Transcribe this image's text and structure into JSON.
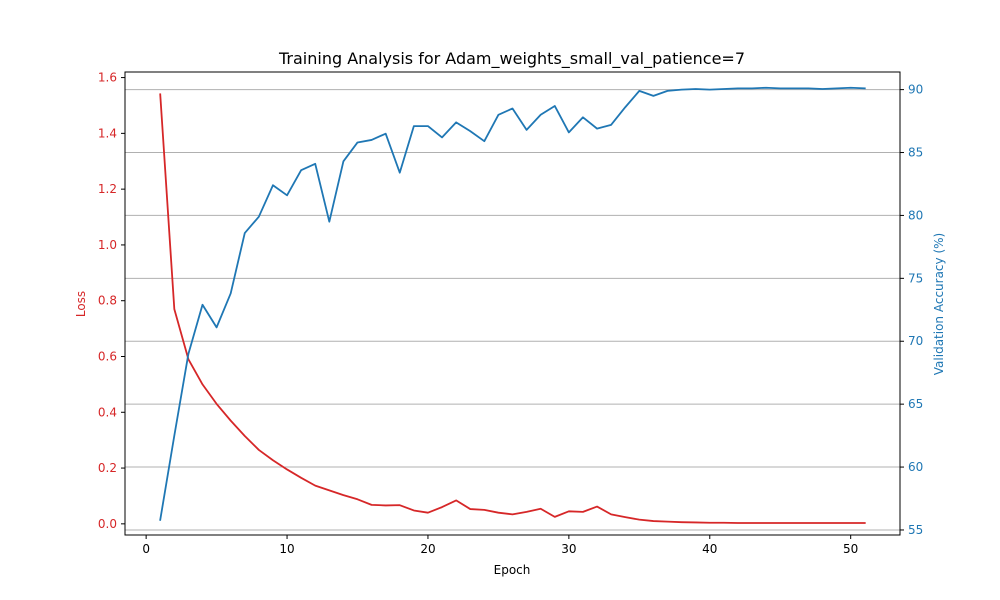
{
  "chart_data": {
    "type": "line",
    "title": "Training Analysis for Adam_weights_small_val_patience=7",
    "xlabel": "Epoch",
    "ylabel_left": "Loss",
    "ylabel_right": "Validation Accuracy (%)",
    "xlim": [
      -1.5,
      53.5
    ],
    "ylim_left": [
      -0.04,
      1.62
    ],
    "ylim_right": [
      54.6,
      91.4
    ],
    "xticks": [
      0,
      10,
      20,
      30,
      40,
      50
    ],
    "yticks_left": [
      0.0,
      0.2,
      0.4,
      0.6,
      0.8,
      1.0,
      1.2,
      1.4,
      1.6
    ],
    "yticks_left_labels": [
      "0.0",
      "0.2",
      "0.4",
      "0.6",
      "0.8",
      "1.0",
      "1.2",
      "1.4",
      "1.6"
    ],
    "yticks_right": [
      55,
      60,
      65,
      70,
      75,
      80,
      85,
      90
    ],
    "grid": "right-axis horizontal",
    "colors": {
      "loss": "#d62728",
      "accuracy": "#1f77b4",
      "grid": "#b0b0b0"
    },
    "x": [
      1,
      2,
      3,
      4,
      5,
      6,
      7,
      8,
      9,
      10,
      11,
      12,
      13,
      14,
      15,
      16,
      17,
      18,
      19,
      20,
      21,
      22,
      23,
      24,
      25,
      26,
      27,
      28,
      29,
      30,
      31,
      32,
      33,
      34,
      35,
      36,
      37,
      38,
      39,
      40,
      41,
      42,
      43,
      44,
      45,
      46,
      47,
      48,
      49,
      50,
      51
    ],
    "series": [
      {
        "axis": "left",
        "values": [
          1.54,
          0.77,
          0.59,
          0.5,
          0.43,
          0.37,
          0.315,
          0.265,
          0.228,
          0.195,
          0.165,
          0.137,
          0.12,
          0.103,
          0.088,
          0.068,
          0.066,
          0.067,
          0.048,
          0.04,
          0.06,
          0.084,
          0.053,
          0.05,
          0.04,
          0.034,
          0.043,
          0.054,
          0.025,
          0.045,
          0.043,
          0.062,
          0.034,
          0.024,
          0.015,
          0.01,
          0.008,
          0.006,
          0.005,
          0.004,
          0.004,
          0.003,
          0.003,
          0.003,
          0.003,
          0.003,
          0.003,
          0.003,
          0.003,
          0.003,
          0.003
        ]
      },
      {
        "axis": "right",
        "values": [
          55.8,
          62.5,
          69.0,
          72.9,
          71.1,
          73.8,
          78.6,
          79.9,
          82.4,
          81.6,
          83.6,
          84.1,
          79.5,
          84.3,
          85.8,
          86.0,
          86.5,
          83.4,
          87.1,
          87.1,
          86.2,
          87.4,
          86.7,
          85.9,
          88.0,
          88.5,
          86.8,
          88.0,
          88.7,
          86.6,
          87.8,
          86.9,
          87.2,
          88.6,
          89.9,
          89.5,
          89.9,
          90.0,
          90.05,
          90.0,
          90.05,
          90.1,
          90.1,
          90.15,
          90.1,
          90.1,
          90.1,
          90.05,
          90.1,
          90.15,
          90.1
        ]
      }
    ]
  }
}
